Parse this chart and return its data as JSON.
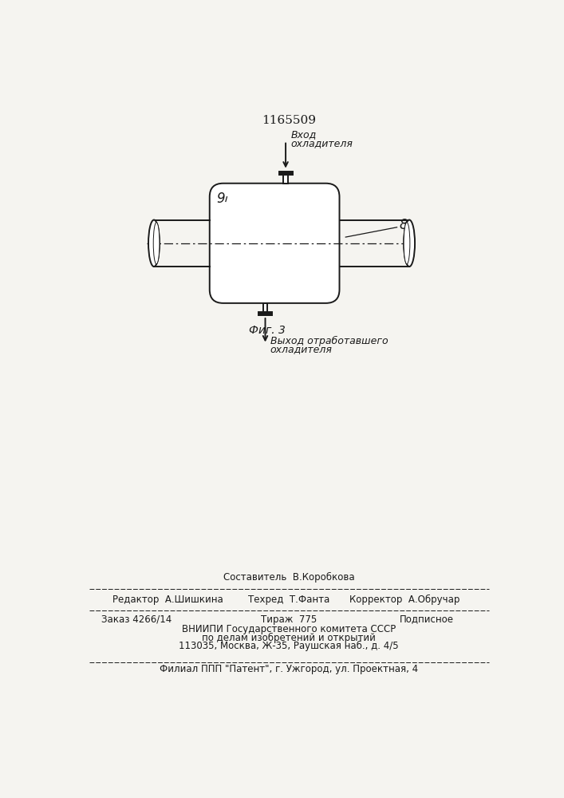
{
  "title": "1165509",
  "bg_color": "#f5f4f0",
  "line_color": "#1a1a1a",
  "fig_caption": "Фиг. 3",
  "label_9": "9",
  "label_8": "8",
  "label_vhod_line1": "Вход",
  "label_vhod_line2": "охладителя",
  "label_vykhod_line1": "Выход отработавшего",
  "label_vykhod_line2": "охладителя",
  "footer_sestavitel": "Составитель  В.Коробкова",
  "footer_redaktor": "Редактор  А.Шишкина",
  "footer_tekhred": "Техред  Т.Фанта",
  "footer_korrektor": "Корректор  А.Обручар",
  "footer_zakaz": "Заказ 4266/14",
  "footer_tirazh": "Тираж  775",
  "footer_podpisnoe": "Подписное",
  "footer_vniipи": "ВНИИПИ Государственного комитета СССР",
  "footer_podel": "по делам изобретений и открытий",
  "footer_addr": "113035, Москва, Ж-35, Раушская наб., д. 4/5",
  "footer_filial": "Филиал ППП \"Патент\", г. Ужгород, ул. Проектная, 4"
}
